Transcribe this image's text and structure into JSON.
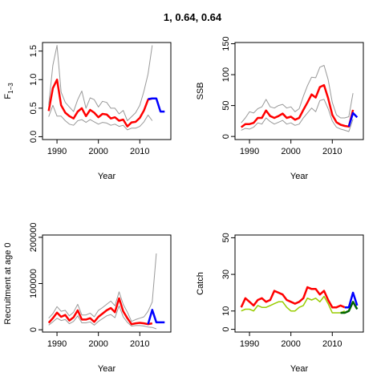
{
  "title": "1, 0.64, 0.64",
  "chart_data": [
    {
      "type": "line",
      "ylabel": "F",
      "ylabel_sub": "1−3",
      "xlabel": "Year",
      "xlim": [
        1986.5,
        2017.5
      ],
      "ylim": [
        -0.05,
        1.65
      ],
      "xticks": [
        "1990",
        "2000",
        "2010"
      ],
      "yticks": [
        "0.0",
        "0.5",
        "1.0",
        "1.5"
      ],
      "series": [
        {
          "role": "median",
          "color": "#ff0000",
          "years": [
            1988,
            1989,
            1990,
            1991,
            1992,
            1993,
            1994,
            1995,
            1996,
            1997,
            1998,
            1999,
            2000,
            2001,
            2002,
            2003,
            2004,
            2005,
            2006,
            2007,
            2008,
            2009,
            2010,
            2011,
            2012,
            2013
          ],
          "values": [
            0.45,
            0.85,
            1.0,
            0.55,
            0.42,
            0.36,
            0.32,
            0.44,
            0.5,
            0.36,
            0.47,
            0.42,
            0.34,
            0.4,
            0.39,
            0.32,
            0.34,
            0.28,
            0.3,
            0.18,
            0.25,
            0.26,
            0.33,
            0.46,
            0.65,
            0.67
          ]
        },
        {
          "role": "upper",
          "color": "#999999",
          "years": [
            1988,
            1989,
            1990,
            1991,
            1992,
            1993,
            1994,
            1995,
            1996,
            1997,
            1998,
            1999,
            2000,
            2001,
            2002,
            2003,
            2004,
            2005,
            2006,
            2007,
            2008,
            2009,
            2010,
            2011,
            2012,
            2013
          ],
          "values": [
            0.55,
            1.25,
            1.6,
            0.78,
            0.6,
            0.52,
            0.44,
            0.65,
            0.8,
            0.5,
            0.68,
            0.65,
            0.52,
            0.62,
            0.6,
            0.5,
            0.5,
            0.4,
            0.46,
            0.28,
            0.35,
            0.42,
            0.55,
            0.8,
            1.1,
            1.6
          ]
        },
        {
          "role": "lower",
          "color": "#999999",
          "years": [
            1988,
            1989,
            1990,
            1991,
            1992,
            1993,
            1994,
            1995,
            1996,
            1997,
            1998,
            1999,
            2000,
            2001,
            2002,
            2003,
            2004,
            2005,
            2006,
            2007,
            2008,
            2009,
            2010,
            2011,
            2012,
            2013
          ],
          "values": [
            0.35,
            0.55,
            0.36,
            0.36,
            0.28,
            0.22,
            0.2,
            0.28,
            0.3,
            0.25,
            0.3,
            0.26,
            0.22,
            0.25,
            0.24,
            0.2,
            0.22,
            0.18,
            0.2,
            0.12,
            0.15,
            0.15,
            0.18,
            0.26,
            0.38,
            0.28
          ]
        },
        {
          "role": "projection",
          "color": "#0000ff",
          "years": [
            2012,
            2013,
            2014,
            2015,
            2016
          ],
          "values": [
            0.66,
            0.67,
            0.67,
            0.44,
            0.44
          ]
        }
      ]
    },
    {
      "type": "line",
      "ylabel": "SSB",
      "xlabel": "Year",
      "xlim": [
        1986.5,
        2017.5
      ],
      "ylim": [
        -5,
        152
      ],
      "xticks": [
        "1990",
        "2000",
        "2010"
      ],
      "yticks": [
        "0",
        "50",
        "100",
        "150"
      ],
      "series": [
        {
          "role": "median",
          "color": "#ff0000",
          "years": [
            1988,
            1989,
            1990,
            1991,
            1992,
            1993,
            1994,
            1995,
            1996,
            1997,
            1998,
            1999,
            2000,
            2001,
            2002,
            2003,
            2004,
            2005,
            2006,
            2007,
            2008,
            2009,
            2010,
            2011,
            2012,
            2013,
            2014,
            2015
          ],
          "values": [
            15,
            20,
            20,
            22,
            30,
            30,
            42,
            33,
            30,
            33,
            37,
            30,
            32,
            27,
            30,
            43,
            55,
            68,
            63,
            80,
            83,
            62,
            35,
            23,
            19,
            17,
            16,
            43
          ]
        },
        {
          "role": "upper",
          "color": "#999999",
          "years": [
            1988,
            1989,
            1990,
            1991,
            1992,
            1993,
            1994,
            1995,
            1996,
            1997,
            1998,
            1999,
            2000,
            2001,
            2002,
            2003,
            2004,
            2005,
            2006,
            2007,
            2008,
            2009,
            2010,
            2011,
            2012,
            2013,
            2014,
            2015
          ],
          "values": [
            22,
            30,
            40,
            38,
            45,
            48,
            60,
            48,
            46,
            50,
            52,
            46,
            48,
            40,
            45,
            65,
            82,
            96,
            95,
            112,
            115,
            92,
            55,
            35,
            30,
            30,
            32,
            70
          ]
        },
        {
          "role": "lower",
          "color": "#999999",
          "years": [
            1988,
            1989,
            1990,
            1991,
            1992,
            1993,
            1994,
            1995,
            1996,
            1997,
            1998,
            1999,
            2000,
            2001,
            2002,
            2003,
            2004,
            2005,
            2006,
            2007,
            2008,
            2009,
            2010,
            2011,
            2012,
            2013,
            2014,
            2015
          ],
          "values": [
            10,
            13,
            12,
            15,
            22,
            20,
            30,
            24,
            20,
            23,
            26,
            20,
            22,
            18,
            20,
            30,
            38,
            46,
            40,
            58,
            60,
            45,
            25,
            15,
            12,
            10,
            8,
            28
          ]
        },
        {
          "role": "projection",
          "color": "#0000ff",
          "years": [
            2014,
            2015,
            2016
          ],
          "values": [
            16,
            38,
            31
          ]
        }
      ]
    },
    {
      "type": "line",
      "ylabel": "Recruitment at age 0",
      "xlabel": "Year",
      "xlim": [
        1986.5,
        2017.5
      ],
      "ylim": [
        -5000,
        205000
      ],
      "xticks": [
        "1990",
        "2000",
        "2010"
      ],
      "yticks": [
        "0",
        "100000",
        "200000"
      ],
      "series": [
        {
          "role": "median",
          "color": "#ff0000",
          "years": [
            1988,
            1989,
            1990,
            1991,
            1992,
            1993,
            1994,
            1995,
            1996,
            1997,
            1998,
            1999,
            2000,
            2001,
            2002,
            2003,
            2004,
            2005,
            2006,
            2007,
            2008,
            2009,
            2010,
            2011,
            2012,
            2013
          ],
          "values": [
            15000,
            25000,
            37000,
            28000,
            32000,
            20000,
            27000,
            42000,
            22000,
            22000,
            25000,
            17000,
            28000,
            35000,
            42000,
            47000,
            38000,
            68000,
            40000,
            25000,
            12000,
            14000,
            15000,
            14000,
            12000,
            14000
          ]
        },
        {
          "role": "upper",
          "color": "#999999",
          "years": [
            1988,
            1989,
            1990,
            1991,
            1992,
            1993,
            1994,
            1995,
            1996,
            1997,
            1998,
            1999,
            2000,
            2001,
            2002,
            2003,
            2004,
            2005,
            2006,
            2007,
            2008,
            2009,
            2010,
            2011,
            2012,
            2013,
            2014
          ],
          "values": [
            25000,
            35000,
            50000,
            40000,
            42000,
            30000,
            38000,
            55000,
            32000,
            32000,
            36000,
            28000,
            42000,
            48000,
            55000,
            62000,
            52000,
            82000,
            55000,
            38000,
            18000,
            22000,
            25000,
            28000,
            40000,
            60000,
            165000
          ]
        },
        {
          "role": "lower",
          "color": "#999999",
          "years": [
            1988,
            1989,
            1990,
            1991,
            1992,
            1993,
            1994,
            1995,
            1996,
            1997,
            1998,
            1999,
            2000,
            2001,
            2002,
            2003,
            2004,
            2005,
            2006,
            2007,
            2008,
            2009,
            2010,
            2011,
            2012,
            2013,
            2014
          ],
          "values": [
            10000,
            17000,
            25000,
            20000,
            22000,
            13000,
            18000,
            30000,
            15000,
            15000,
            17000,
            10000,
            18000,
            24000,
            30000,
            33000,
            26000,
            52000,
            28000,
            16000,
            8000,
            9000,
            9000,
            8000,
            6000,
            5000,
            2000
          ]
        },
        {
          "role": "projection",
          "color": "#0000ff",
          "years": [
            2012,
            2013,
            2014,
            2015,
            2016
          ],
          "values": [
            12000,
            43000,
            16000,
            16000,
            16000
          ]
        }
      ]
    },
    {
      "type": "line",
      "ylabel": "Catch",
      "xlabel": "Year",
      "xlim": [
        1986.5,
        2017.5
      ],
      "ylim": [
        -1.5,
        51.5
      ],
      "xticks": [
        "1990",
        "2000",
        "2010"
      ],
      "yticks": [
        "0",
        "10",
        "30",
        "50"
      ],
      "series": [
        {
          "role": "catch",
          "color": "#ff0000",
          "years": [
            1988,
            1989,
            1990,
            1991,
            1992,
            1993,
            1994,
            1995,
            1996,
            1997,
            1998,
            1999,
            2000,
            2001,
            2002,
            2003,
            2004,
            2005,
            2006,
            2007,
            2008,
            2009,
            2010,
            2011,
            2012,
            2013
          ],
          "values": [
            12,
            17,
            15,
            13,
            16,
            17,
            15,
            16,
            21,
            20,
            19,
            16,
            15,
            14,
            15,
            17,
            23,
            22,
            22,
            19,
            21,
            16,
            12,
            12,
            13,
            12
          ]
        },
        {
          "role": "observed",
          "color": "#99cc00",
          "years": [
            1988,
            1989,
            1990,
            1991,
            1992,
            1993,
            1994,
            1995,
            1996,
            1997,
            1998,
            1999,
            2000,
            2001,
            2002,
            2003,
            2004,
            2005,
            2006,
            2007,
            2008,
            2009,
            2010,
            2011,
            2012,
            2013
          ],
          "values": [
            10,
            11,
            11,
            10,
            13,
            12,
            12,
            13,
            14,
            15,
            15,
            12,
            10,
            10,
            12,
            13,
            17,
            16,
            17,
            15,
            18,
            14,
            9,
            9,
            9,
            10
          ]
        },
        {
          "role": "fitted",
          "color": "#006400",
          "years": [
            2012,
            2013,
            2014,
            2015,
            2016
          ],
          "values": [
            9,
            9,
            10,
            15,
            11
          ]
        },
        {
          "role": "projection",
          "color": "#0000ff",
          "years": [
            2013,
            2014,
            2015,
            2016
          ],
          "values": [
            12,
            12,
            20,
            13
          ]
        }
      ]
    }
  ]
}
